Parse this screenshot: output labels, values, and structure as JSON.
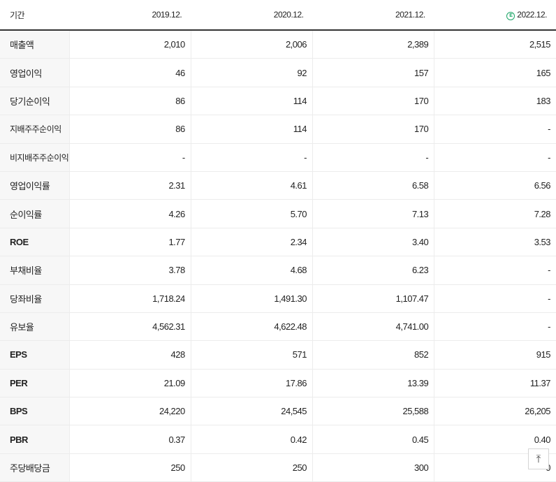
{
  "header": {
    "label": "기간",
    "periods": [
      "2019.12.",
      "2020.12.",
      "2021.12.",
      "2022.12."
    ],
    "estimate_badge": "E"
  },
  "rows": [
    {
      "label": "매출액",
      "values": [
        "2,010",
        "2,006",
        "2,389",
        "2,515"
      ]
    },
    {
      "label": "영업이익",
      "values": [
        "46",
        "92",
        "157",
        "165"
      ]
    },
    {
      "label": "당기순이익",
      "values": [
        "86",
        "114",
        "170",
        "183"
      ]
    },
    {
      "label": "지배주주순이익",
      "values": [
        "86",
        "114",
        "170",
        "-"
      ]
    },
    {
      "label": "비지배주주순이익",
      "values": [
        "-",
        "-",
        "-",
        "-"
      ]
    },
    {
      "label": "영업이익률",
      "values": [
        "2.31",
        "4.61",
        "6.58",
        "6.56"
      ]
    },
    {
      "label": "순이익률",
      "values": [
        "4.26",
        "5.70",
        "7.13",
        "7.28"
      ]
    },
    {
      "label": "ROE",
      "values": [
        "1.77",
        "2.34",
        "3.40",
        "3.53"
      ]
    },
    {
      "label": "부채비율",
      "values": [
        "3.78",
        "4.68",
        "6.23",
        "-"
      ]
    },
    {
      "label": "당좌비율",
      "values": [
        "1,718.24",
        "1,491.30",
        "1,107.47",
        "-"
      ]
    },
    {
      "label": "유보율",
      "values": [
        "4,562.31",
        "4,622.48",
        "4,741.00",
        "-"
      ]
    },
    {
      "label": "EPS",
      "values": [
        "428",
        "571",
        "852",
        "915"
      ]
    },
    {
      "label": "PER",
      "values": [
        "21.09",
        "17.86",
        "13.39",
        "11.37"
      ]
    },
    {
      "label": "BPS",
      "values": [
        "24,220",
        "24,545",
        "25,588",
        "26,205"
      ]
    },
    {
      "label": "PBR",
      "values": [
        "0.37",
        "0.42",
        "0.45",
        "0.40"
      ]
    },
    {
      "label": "주당배당금",
      "values": [
        "250",
        "250",
        "300",
        "0"
      ]
    }
  ],
  "top_button": {
    "icon": "arrow-up-icon",
    "glyph": "⤒"
  }
}
